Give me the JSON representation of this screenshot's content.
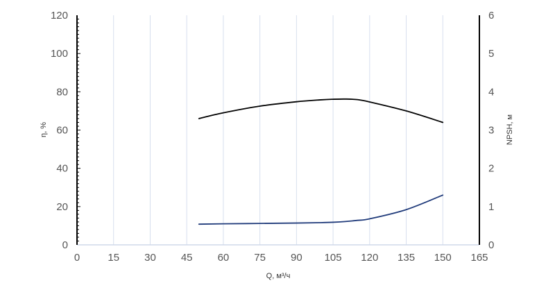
{
  "chart_data": {
    "type": "line",
    "x_axis": {
      "label": "Q, м³/ч",
      "range": [
        0,
        165
      ],
      "ticks": [
        0,
        15,
        30,
        45,
        60,
        75,
        90,
        105,
        120,
        135,
        150,
        165
      ]
    },
    "y_axis_left": {
      "label": "η, %",
      "range": [
        0,
        120
      ],
      "ticks": [
        0,
        20,
        40,
        60,
        80,
        100,
        120
      ]
    },
    "y_axis_right": {
      "label": "NPSH, м",
      "range": [
        0,
        6
      ],
      "ticks": [
        0,
        1,
        2,
        3,
        4,
        5,
        6
      ]
    },
    "grid": "vertical",
    "series": [
      {
        "axis": "left",
        "color": "#000000",
        "x": [
          50,
          60,
          75,
          90,
          100,
          105,
          110,
          115,
          120,
          135,
          150
        ],
        "y": [
          66,
          69,
          72.5,
          74.8,
          75.8,
          76.1,
          76.2,
          75.9,
          74.7,
          70,
          64
        ]
      },
      {
        "axis": "right",
        "color": "#1f3a7a",
        "x": [
          50,
          60,
          75,
          90,
          100,
          105,
          110,
          115,
          120,
          135,
          150
        ],
        "y": [
          0.54,
          0.55,
          0.56,
          0.57,
          0.58,
          0.59,
          0.61,
          0.64,
          0.68,
          0.92,
          1.3
        ]
      }
    ]
  }
}
